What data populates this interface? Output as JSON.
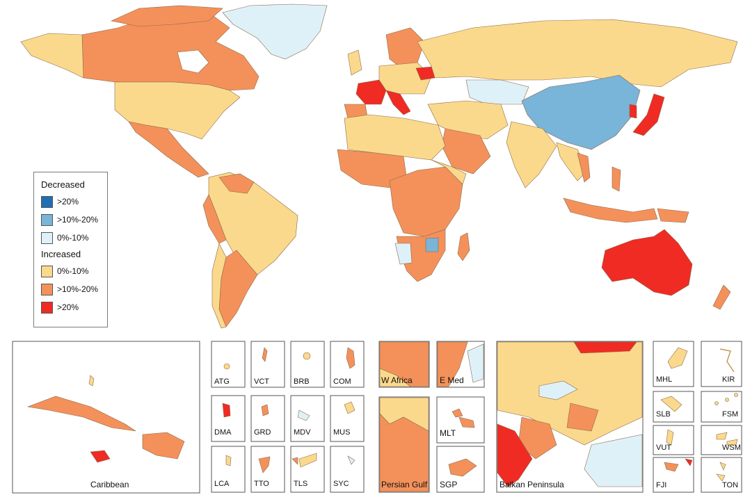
{
  "legend": {
    "decreased_title": "Decreased",
    "increased_title": "Increased",
    "decreased": [
      {
        "label": ">20%",
        "color": "#1f6fb5"
      },
      {
        "label": ">10%-20%",
        "color": "#79b4d9"
      },
      {
        "label": "0%-10%",
        "color": "#dff1f8"
      }
    ],
    "increased": [
      {
        "label": "0%-10%",
        "color": "#fbd98c"
      },
      {
        "label": ">10%-20%",
        "color": "#f4915a"
      },
      {
        "label": ">20%",
        "color": "#ef2b24"
      }
    ]
  },
  "insets": {
    "caribbean": "Caribbean",
    "atg": "ATG",
    "vct": "VCT",
    "brb": "BRB",
    "com": "COM",
    "dma": "DMA",
    "grd": "GRD",
    "mdv": "MDV",
    "mus": "MUS",
    "lca": "LCA",
    "tto": "TTO",
    "tls": "TLS",
    "syc": "SYC",
    "w_africa": "W Africa",
    "e_med": "E Med",
    "persian_gulf": "Persian Gulf",
    "mlt": "MLT",
    "sgp": "SGP",
    "balkan": "Balkan Peninsula",
    "mhl": "MHL",
    "kir": "KIR",
    "slb": "SLB",
    "fsm": "FSM",
    "vut": "VUT",
    "wsm": "WSM",
    "fji": "FJI",
    "ton": "TON"
  }
}
